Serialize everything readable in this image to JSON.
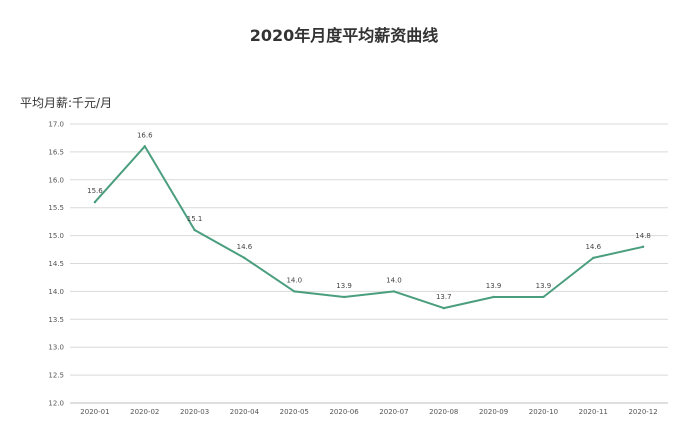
{
  "chart_data": {
    "type": "line",
    "title": "2020年月度平均薪资曲线",
    "ylabel": "平均月薪:千元/月",
    "xlabel": "",
    "categories": [
      "2020-01",
      "2020-02",
      "2020-03",
      "2020-04",
      "2020-05",
      "2020-06",
      "2020-07",
      "2020-08",
      "2020-09",
      "2020-10",
      "2020-11",
      "2020-12"
    ],
    "series": [
      {
        "values": [
          15.6,
          16.6,
          15.1,
          14.6,
          14.0,
          13.9,
          14.0,
          13.7,
          13.9,
          13.9,
          14.6,
          14.8
        ],
        "labels": [
          "15.6",
          "16.6",
          "15.1",
          "14.6",
          "14.0",
          "13.9",
          "14.0",
          "13.7",
          "13.9",
          "13.9",
          "14.6",
          "14.8"
        ],
        "color": "#4a9e7e"
      }
    ],
    "ylim": [
      12.0,
      17.0
    ],
    "yticks": [
      "12.0",
      "12.5",
      "13.0",
      "13.5",
      "14.0",
      "14.5",
      "15.0",
      "15.5",
      "16.0",
      "16.5",
      "17.0"
    ],
    "grid": true,
    "grid_color": "#d9d9d9",
    "legend": "none"
  }
}
